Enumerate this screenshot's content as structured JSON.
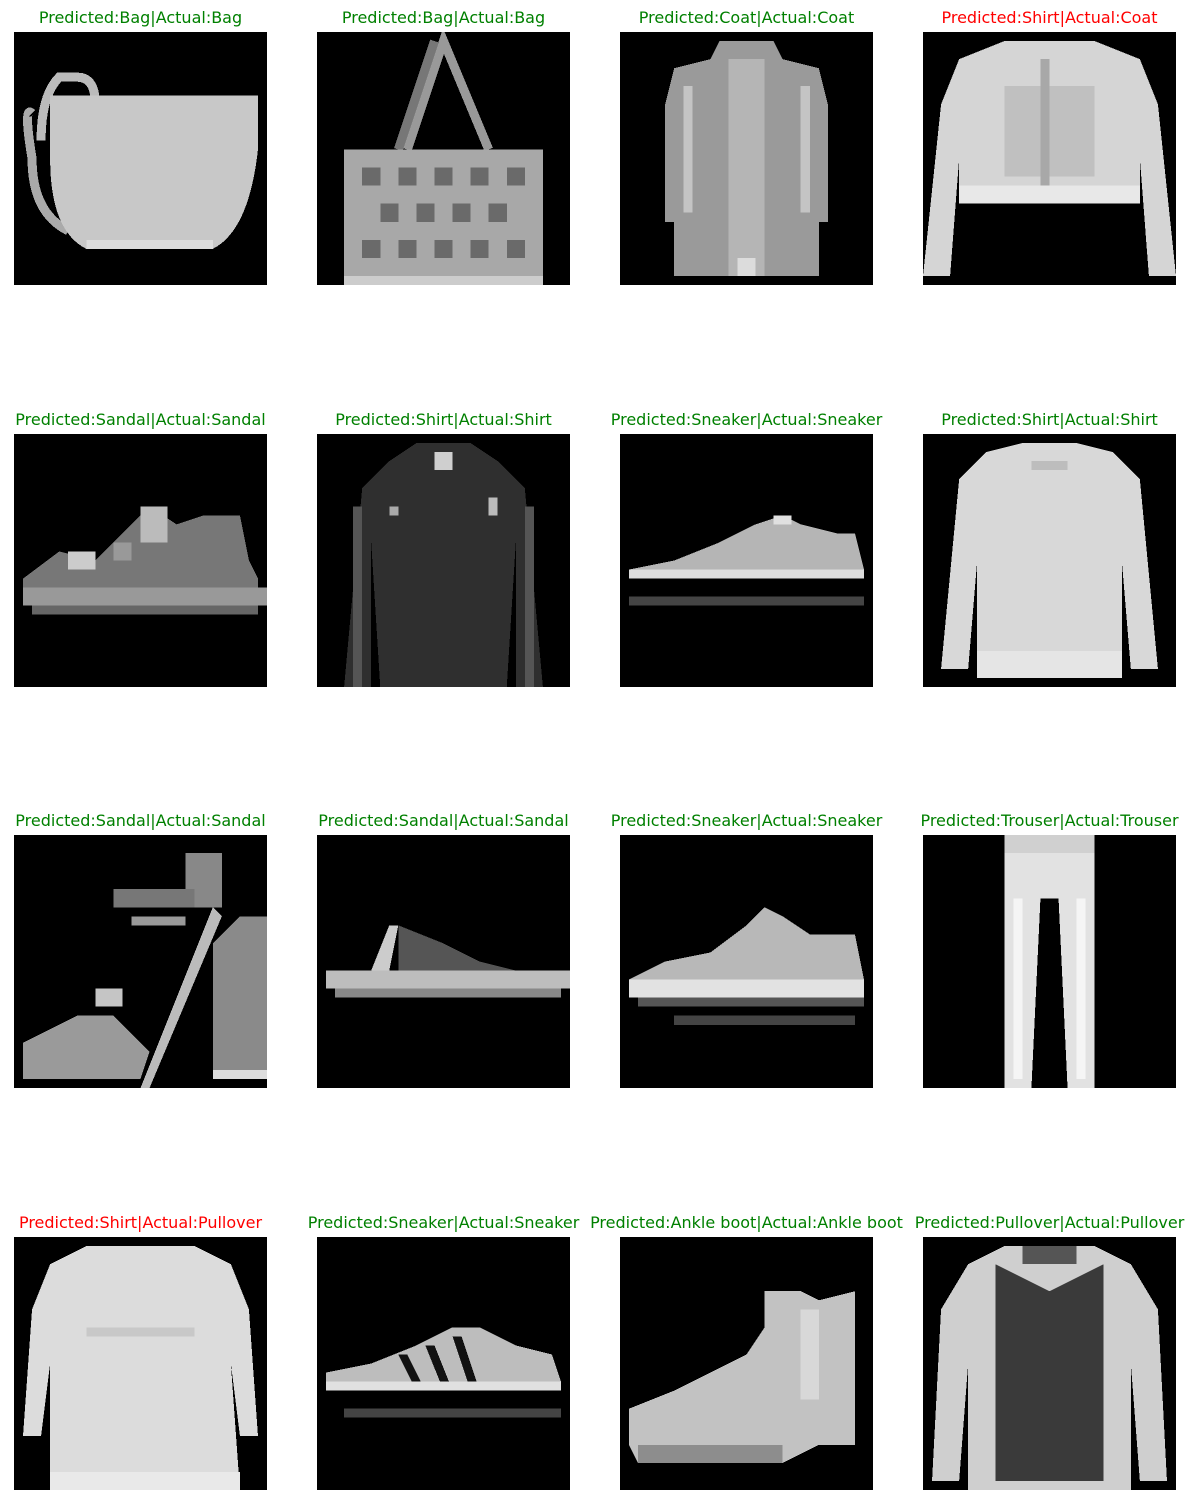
{
  "colors": {
    "correct": "#008000",
    "incorrect": "#ff0000",
    "image_background": "#000000"
  },
  "panels": [
    {
      "title": "Predicted:Bag|Actual:Bag",
      "correct": true,
      "item": "bag"
    },
    {
      "title": "Predicted:Bag|Actual:Bag",
      "correct": true,
      "item": "tote-bag"
    },
    {
      "title": "Predicted:Coat|Actual:Coat",
      "correct": true,
      "item": "coat"
    },
    {
      "title": "Predicted:Shirt|Actual:Coat",
      "correct": false,
      "item": "light-top"
    },
    {
      "title": "Predicted:Sandal|Actual:Sandal",
      "correct": true,
      "item": "sandal"
    },
    {
      "title": "Predicted:Shirt|Actual:Shirt",
      "correct": true,
      "item": "dark-shirt"
    },
    {
      "title": "Predicted:Sneaker|Actual:Sneaker",
      "correct": true,
      "item": "sneaker"
    },
    {
      "title": "Predicted:Shirt|Actual:Shirt",
      "correct": true,
      "item": "sweatshirt"
    },
    {
      "title": "Predicted:Sandal|Actual:Sandal",
      "correct": true,
      "item": "heeled-sandal"
    },
    {
      "title": "Predicted:Sandal|Actual:Sandal",
      "correct": true,
      "item": "flip-flop"
    },
    {
      "title": "Predicted:Sneaker|Actual:Sneaker",
      "correct": true,
      "item": "sneaker-2"
    },
    {
      "title": "Predicted:Trouser|Actual:Trouser",
      "correct": true,
      "item": "trouser"
    },
    {
      "title": "Predicted:Shirt|Actual:Pullover",
      "correct": false,
      "item": "pullover-light"
    },
    {
      "title": "Predicted:Sneaker|Actual:Sneaker",
      "correct": true,
      "item": "striped-sneaker"
    },
    {
      "title": "Predicted:Ankle boot|Actual:Ankle boot",
      "correct": true,
      "item": "ankle-boot"
    },
    {
      "title": "Predicted:Pullover|Actual:Pullover",
      "correct": true,
      "item": "pullover-dark"
    }
  ]
}
